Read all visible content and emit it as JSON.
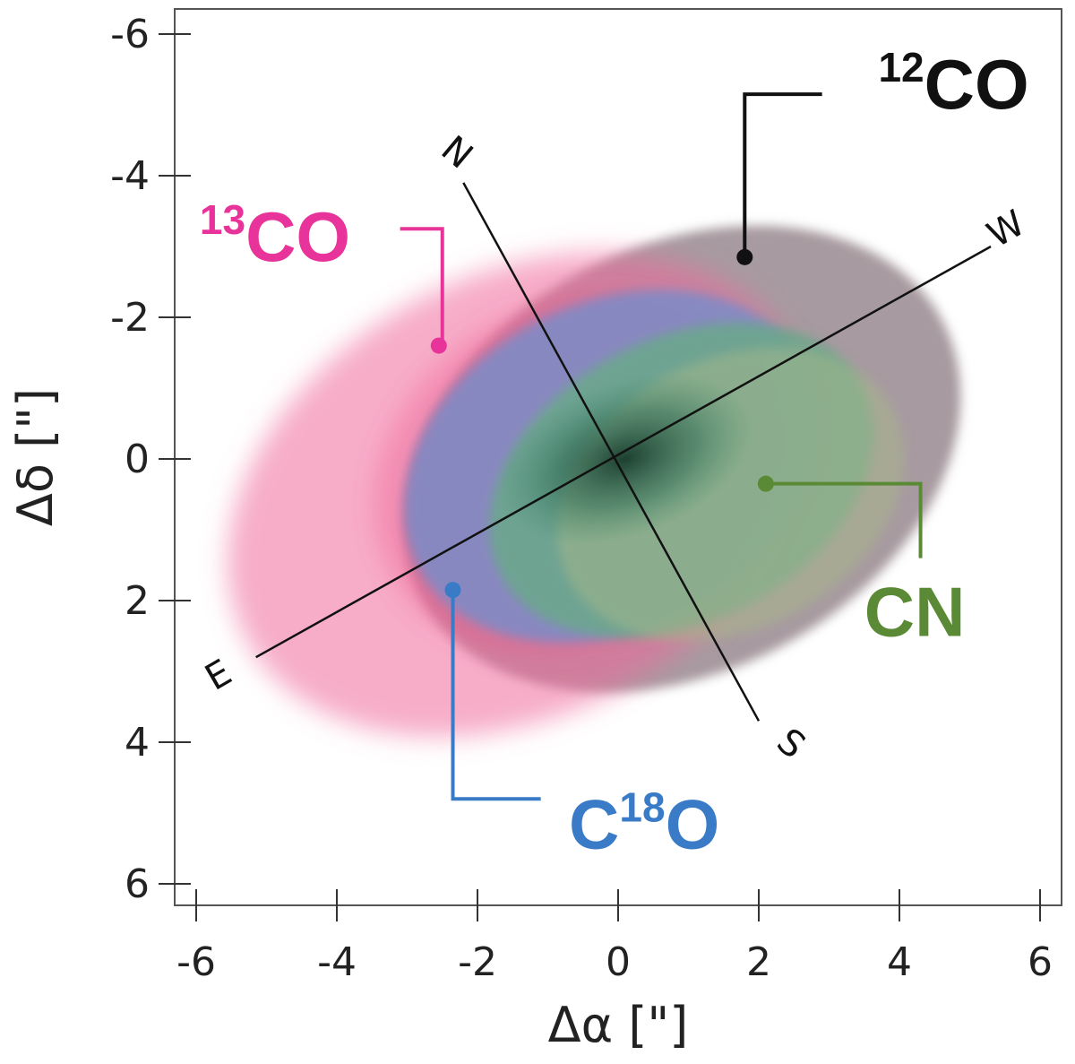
{
  "chart_data": {
    "type": "image",
    "xlabel": "Δα [\"]",
    "ylabel": "Δδ [\"]",
    "xlim": [
      -6,
      6
    ],
    "ylim": [
      -6,
      6
    ],
    "x_ticks": [
      "-6",
      "-4",
      "-2",
      "0",
      "2",
      "4",
      "6"
    ],
    "y_ticks": [
      "-6",
      "-4",
      "-2",
      "0",
      "2",
      "4",
      "6"
    ],
    "compass": {
      "N": "N",
      "S": "S",
      "E": "E",
      "W": "W"
    },
    "molecules": [
      {
        "key": "c12o",
        "label_main": "CO",
        "label_sup": "12",
        "label_pre": "",
        "color": "#111111",
        "marker": [
          1.8,
          -2.85
        ]
      },
      {
        "key": "c13o",
        "label_main": "CO",
        "label_sup": "13",
        "label_pre": "",
        "color": "#e8349a",
        "marker": [
          -2.55,
          -1.6
        ]
      },
      {
        "key": "c18o",
        "label_main": "O",
        "label_sup": "18",
        "label_pre": "C",
        "color": "#3a7bc8",
        "marker": [
          -2.35,
          1.85
        ]
      },
      {
        "key": "cn",
        "label_main": "CN",
        "label_sup": "",
        "label_pre": "",
        "color": "#5a8a35",
        "marker": [
          2.1,
          0.35
        ]
      }
    ],
    "emission_colors": {
      "c12o": "#8a7880",
      "c13o": "#f06a9a",
      "c18o": "#7a8cc8",
      "cn": "#6aa88a",
      "core": "#1f4a38"
    }
  }
}
